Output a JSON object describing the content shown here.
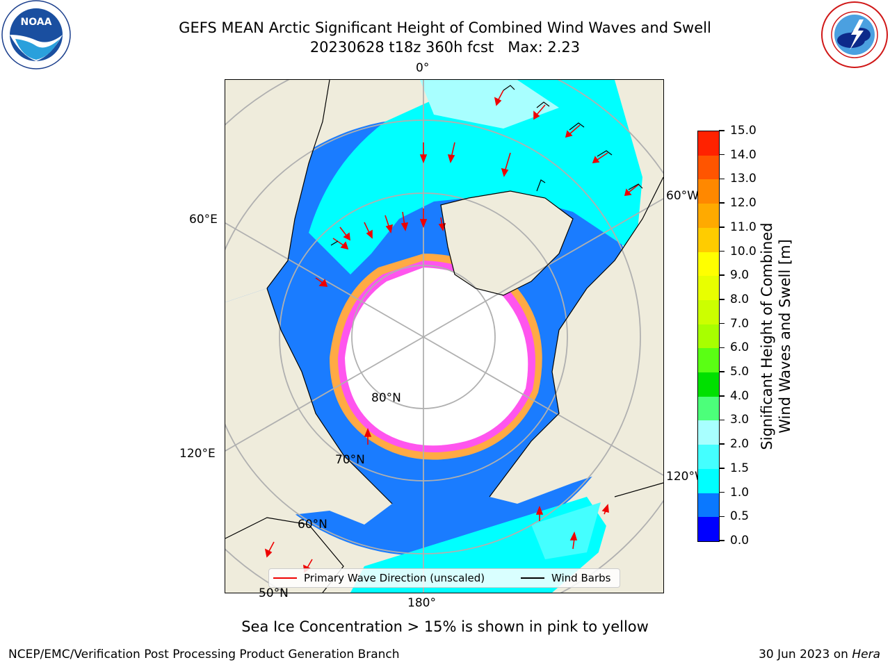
{
  "title": {
    "line1": "GEFS MEAN Arctic Significant Height of Combined Wind Waves and Swell",
    "line2": "20230628 t18z 360h fcst   Max: 2.23"
  },
  "logos": {
    "left": {
      "text": "NOAA",
      "ring_text": "NATIONAL OCEANIC AND ATMOSPHERIC ADMINISTRATION · U.S. DEPARTMENT OF COMMERCE"
    },
    "right": {
      "ring_text": "NATIONAL WEATHER SERVICE"
    }
  },
  "map": {
    "longitude_labels": [
      "0°",
      "60°W",
      "60°E",
      "120°E",
      "120°W",
      "180°"
    ],
    "latitude_labels": [
      "80°N",
      "70°N",
      "60°N",
      "50°N"
    ],
    "colors": {
      "land": "#efecdc",
      "ice_free_ocean": "#ffffff",
      "sea_ice_pink": "#ff55ee",
      "sea_ice_orange": "#ffaa44",
      "arrow": "#ee0000"
    }
  },
  "colorbar": {
    "label_line1": "Significant Height of Combined",
    "label_line2": "Wind Waves and Swell [m]",
    "ticks": [
      "15.0",
      "14.0",
      "13.0",
      "12.0",
      "11.0",
      "10.0",
      "9.0",
      "8.0",
      "7.0",
      "6.0",
      "5.0",
      "4.0",
      "3.0",
      "2.0",
      "1.5",
      "1.0",
      "0.5",
      "0.0"
    ],
    "bins": [
      {
        "from": 0.0,
        "to": 0.5,
        "color": "#0000ff"
      },
      {
        "from": 0.5,
        "to": 1.0,
        "color": "#0a78ff"
      },
      {
        "from": 1.0,
        "to": 1.5,
        "color": "#00ffff"
      },
      {
        "from": 1.5,
        "to": 2.0,
        "color": "#44ffff"
      },
      {
        "from": 2.0,
        "to": 3.0,
        "color": "#a8ffff"
      },
      {
        "from": 3.0,
        "to": 4.0,
        "color": "#4cff7a"
      },
      {
        "from": 4.0,
        "to": 5.0,
        "color": "#00e000"
      },
      {
        "from": 5.0,
        "to": 6.0,
        "color": "#5aff14"
      },
      {
        "from": 6.0,
        "to": 7.0,
        "color": "#a8ff00"
      },
      {
        "from": 7.0,
        "to": 8.0,
        "color": "#ccff00"
      },
      {
        "from": 8.0,
        "to": 9.0,
        "color": "#e8ff00"
      },
      {
        "from": 9.0,
        "to": 10.0,
        "color": "#ffff00"
      },
      {
        "from": 10.0,
        "to": 11.0,
        "color": "#ffcc00"
      },
      {
        "from": 11.0,
        "to": 12.0,
        "color": "#ffaa00"
      },
      {
        "from": 12.0,
        "to": 13.0,
        "color": "#ff8800"
      },
      {
        "from": 13.0,
        "to": 14.0,
        "color": "#ff5500"
      },
      {
        "from": 14.0,
        "to": 15.0,
        "color": "#ff2200"
      }
    ]
  },
  "legend": {
    "primary_wave": "Primary Wave Direction (unscaled)",
    "wind_barbs": "Wind Barbs"
  },
  "subtitle": "Sea Ice Concentration > 15% is shown in pink to yellow",
  "footer": {
    "left": "NCEP/EMC/Verification Post Processing Product Generation Branch",
    "right_date": "30 Jun 2023 on ",
    "right_host": "Hera"
  }
}
